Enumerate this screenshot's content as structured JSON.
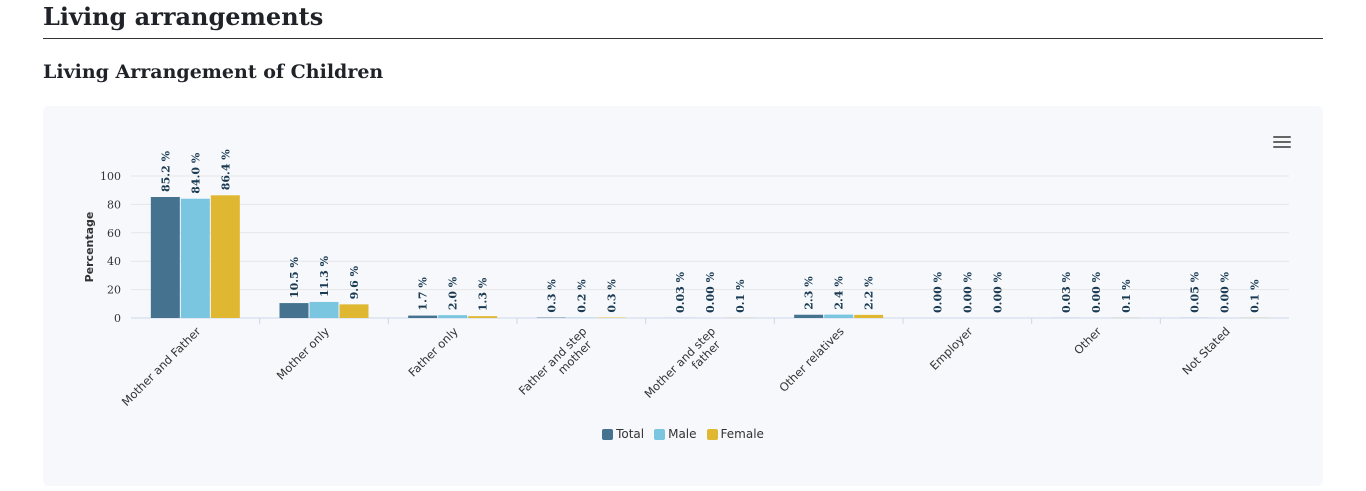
{
  "page": {
    "section_title": "Living arrangements",
    "chart_title": "Living Arrangement of Children"
  },
  "chart_data": {
    "type": "bar",
    "title": "",
    "xlabel": "",
    "ylabel": "Percentage",
    "ylim": [
      0,
      100
    ],
    "yticks": [
      0,
      20,
      40,
      60,
      80,
      100
    ],
    "grid": true,
    "legend_position": "bottom-center",
    "categories": [
      "Mother and Father",
      "Mother only",
      "Father only",
      "Father and step mother",
      "Mother and step father",
      "Other relatives",
      "Employer",
      "Other",
      "Not Stated"
    ],
    "series": [
      {
        "name": "Total",
        "color": "#44728f",
        "values": [
          85.2,
          10.5,
          1.7,
          0.3,
          0.03,
          2.3,
          0.0,
          0.03,
          0.05
        ],
        "labels": [
          "85.2 %",
          "10.5 %",
          "1.7 %",
          "0.3 %",
          "0.03 %",
          "2.3 %",
          "0.00 %",
          "0.03 %",
          "0.05 %"
        ]
      },
      {
        "name": "Male",
        "color": "#7ac6e0",
        "values": [
          84.0,
          11.3,
          2.0,
          0.2,
          0.0,
          2.4,
          0.0,
          0.0,
          0.0
        ],
        "labels": [
          "84.0 %",
          "11.3 %",
          "2.0 %",
          "0.2 %",
          "0.00 %",
          "2.4 %",
          "0.00 %",
          "0.00 %",
          "0.00 %"
        ]
      },
      {
        "name": "Female",
        "color": "#e0b731",
        "values": [
          86.4,
          9.6,
          1.3,
          0.3,
          0.1,
          2.2,
          0.0,
          0.1,
          0.1
        ],
        "labels": [
          "86.4 %",
          "9.6 %",
          "1.3 %",
          "0.3 %",
          "0.1 %",
          "2.2 %",
          "0.00 %",
          "0.1 %",
          "0.1 %"
        ]
      }
    ]
  },
  "ui": {
    "menu_icon": "hamburger-menu-icon"
  }
}
